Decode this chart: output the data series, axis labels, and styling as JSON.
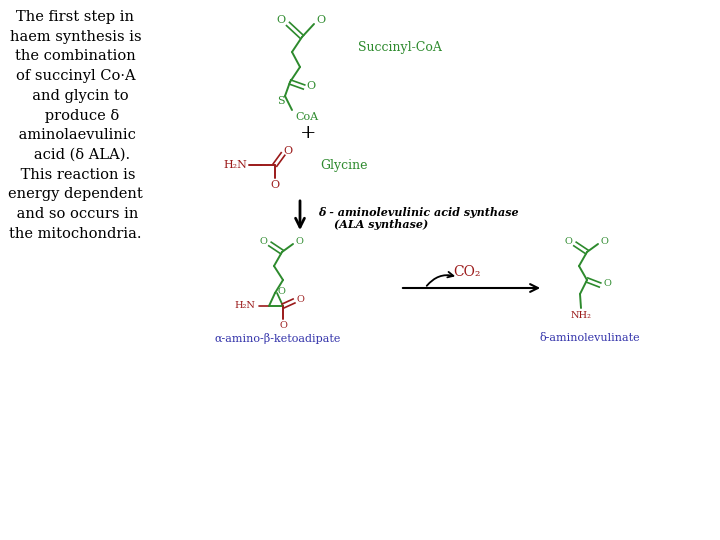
{
  "bg_color": "#ffffff",
  "black": "#000000",
  "green": "#2d8a2d",
  "red": "#9b1a1a",
  "blue": "#3333aa",
  "left_text": "The first step in\nhaem synthesis is\nthe combination\nof succinyl Co·A\n  and glycin to\n   produce δ\n aminolaevulinic\n   acid (δ ALA).\n This reaction is\nenergy dependent\n and so occurs in\nthe mitochondria.",
  "succinyl_label": "Succinyl-CoA",
  "glycine_label": "Glycine",
  "enzyme_line1": "δ - aminolevulinic acid synthase",
  "enzyme_line2": "(ALA synthase)",
  "co2_label": "CO₂",
  "bottom_left_label": "α-amino-β-ketoadipate",
  "bottom_right_label": "δ-aminolevulinate"
}
